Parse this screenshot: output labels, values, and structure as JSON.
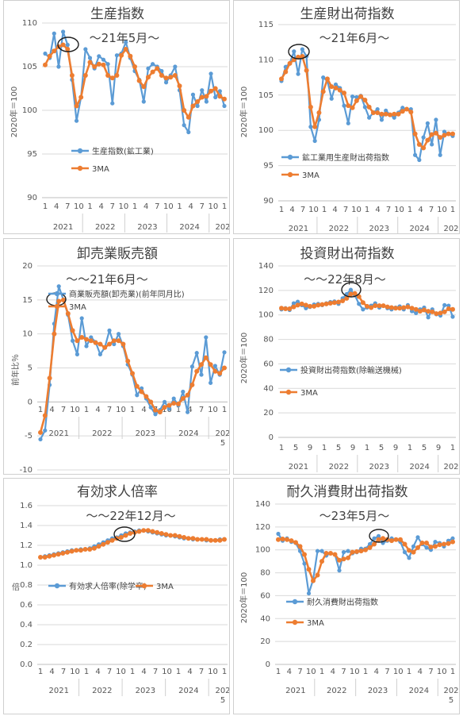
{
  "colors": {
    "series_blue": "#5b9bd5",
    "series_orange": "#ed7d31",
    "marker_circle": "#1f1f1f"
  },
  "chart_data": [
    {
      "id": "p1",
      "type": "line",
      "title": "生産指数",
      "annotation": "〜21年5月〜",
      "ylabel": "2020年＝100",
      "ylim": [
        90,
        110
      ],
      "yticks": [
        "90",
        "95",
        "100",
        "105",
        "110"
      ],
      "xticks": [
        "1",
        "4",
        "7",
        "10",
        "1",
        "4",
        "7",
        "10",
        "1",
        "4",
        "7",
        "10",
        "1",
        "4",
        "7",
        "10",
        "1"
      ],
      "years": [
        "2021",
        "2022",
        "2023",
        "2024",
        "202"
      ],
      "legend": [
        "生産指数(鉱工業)",
        "3MA"
      ],
      "series": [
        {
          "name": "生産指数(鉱工業)",
          "values": [
            106.5,
            106.0,
            108.8,
            105.0,
            109.0,
            107.5,
            103.5,
            98.8,
            101.5,
            107.0,
            106.0,
            104.8,
            106.2,
            105.8,
            105.3,
            100.8,
            106.3,
            106.5,
            107.8,
            106.0,
            104.5,
            103.5,
            101.0,
            104.8,
            105.3,
            105.0,
            104.5,
            103.2,
            104.0,
            105.0,
            102.3,
            98.3,
            97.5,
            101.8,
            100.5,
            102.3,
            101.0,
            104.2,
            101.5,
            102.2,
            100.5
          ]
        },
        {
          "name": "3MA",
          "values": [
            105.2,
            106.2,
            106.8,
            107.3,
            107.5,
            107.0,
            104.0,
            100.5,
            101.5,
            104.0,
            105.5,
            105.0,
            105.3,
            105.2,
            104.0,
            103.7,
            104.0,
            106.3,
            107.0,
            106.2,
            105.0,
            103.4,
            102.7,
            103.8,
            104.4,
            104.8,
            104.0,
            103.7,
            103.8,
            104.0,
            102.8,
            100.0,
            99.2,
            100.5,
            101.0,
            101.5,
            101.6,
            102.2,
            102.5,
            101.6,
            101.3
          ]
        }
      ]
    },
    {
      "id": "p2",
      "type": "line",
      "title": "生産財出荷指数",
      "annotation": "〜21年6月〜",
      "ylabel": "2020年＝100",
      "ylim": [
        90,
        115
      ],
      "yticks": [
        "90",
        "95",
        "100",
        "105",
        "110",
        "115"
      ],
      "xticks": [
        "1",
        "4",
        "7",
        "10",
        "1",
        "4",
        "7",
        "10",
        "1",
        "4",
        "7",
        "10",
        "1",
        "4",
        "7",
        "10",
        "1"
      ],
      "years": [
        "2021",
        "2022",
        "2023",
        "2024",
        "202"
      ],
      "legend": [
        "鉱工業用生産財出荷指数",
        "3MA"
      ],
      "series": [
        {
          "name": "鉱工業用生産財出荷指数",
          "values": [
            107.0,
            109.0,
            109.5,
            111.2,
            108.0,
            111.5,
            110.5,
            100.5,
            98.5,
            101.5,
            107.5,
            107.0,
            104.5,
            106.5,
            106.0,
            103.5,
            101.0,
            104.8,
            104.7,
            104.9,
            103.3,
            101.8,
            102.5,
            103.0,
            101.5,
            102.8,
            102.2,
            101.8,
            102.5,
            103.2,
            103.0,
            103.0,
            96.5,
            95.8,
            99.0,
            101.0,
            98.0,
            101.5,
            96.5,
            99.8,
            99.5,
            99.2
          ]
        },
        {
          "name": "3MA",
          "values": [
            107.3,
            108.3,
            109.5,
            110.0,
            110.4,
            110.5,
            108.5,
            103.3,
            100.5,
            102.5,
            105.5,
            107.3,
            106.2,
            106.0,
            105.7,
            105.3,
            103.5,
            103.2,
            104.2,
            104.8,
            104.3,
            103.3,
            102.5,
            102.5,
            102.3,
            102.3,
            102.2,
            102.3,
            102.3,
            102.7,
            103.0,
            102.6,
            99.5,
            98.0,
            97.5,
            98.6,
            99.4,
            99.6,
            99.0,
            99.3,
            99.5,
            99.5
          ]
        }
      ]
    },
    {
      "id": "p3",
      "type": "line",
      "title": "卸売業販売額",
      "annotation": "〜〜21年6月〜",
      "ylabel": "前年比％",
      "ylim": [
        -10,
        20
      ],
      "yticks": [
        "-10",
        "-5",
        "0",
        "5",
        "10",
        "15",
        "20"
      ],
      "xticks": [
        "1",
        "4",
        "7",
        "10",
        "1",
        "4",
        "7",
        "10",
        "1",
        "4",
        "7",
        "10",
        "1",
        "4",
        "7",
        "10",
        "1"
      ],
      "years": [
        "2021",
        "2022",
        "2023",
        "2024",
        "202"
      ],
      "year_suffix": "5",
      "legend": [
        "商業販売額(卸売業)(前年同月比)",
        "3MA"
      ],
      "series": [
        {
          "name": "商業販売額(卸売業)(前年同月比)",
          "values": [
            -5.5,
            -4.2,
            2.5,
            11.5,
            17.0,
            15.0,
            12.8,
            9.0,
            7.0,
            12.3,
            8.2,
            9.5,
            8.8,
            7.0,
            8.0,
            10.5,
            8.5,
            10.0,
            8.2,
            5.5,
            4.0,
            1.0,
            2.0,
            0.5,
            -0.8,
            -1.8,
            -1.2,
            0.0,
            -1.0,
            0.5,
            -0.5,
            1.5,
            -1.5,
            5.2,
            7.2,
            4.0,
            9.5,
            2.8,
            5.3,
            4.0,
            7.3
          ]
        },
        {
          "name": "3MA",
          "values": [
            -4.5,
            -2.0,
            3.5,
            10.0,
            14.8,
            15.0,
            13.0,
            10.5,
            9.0,
            9.5,
            9.2,
            9.0,
            8.7,
            8.5,
            8.0,
            8.5,
            9.0,
            9.0,
            8.5,
            6.0,
            4.2,
            2.3,
            1.5,
            0.8,
            0.0,
            -1.2,
            -1.5,
            -0.8,
            -0.5,
            -0.2,
            -0.3,
            0.5,
            1.0,
            2.5,
            4.5,
            5.5,
            6.5,
            5.5,
            4.5,
            4.2,
            5.0
          ]
        }
      ]
    },
    {
      "id": "p4",
      "type": "line",
      "title": "投資財出荷指数",
      "annotation": "〜〜22年8月〜",
      "ylabel": "2020年＝100",
      "ylim": [
        0,
        140
      ],
      "yticks": [
        "0",
        "20",
        "40",
        "60",
        "80",
        "100",
        "120",
        "140"
      ],
      "xticks": [
        "1",
        "5",
        "9",
        "1",
        "5",
        "9",
        "1",
        "5",
        "9",
        "1",
        "5",
        "9",
        "1"
      ],
      "years": [
        "2021",
        "2022",
        "2023",
        "2024",
        "202"
      ],
      "legend": [
        "投資財出荷指数(除輸送機械)",
        "3MA"
      ],
      "series": [
        {
          "name": "投資財出荷指数(除輸送機械)",
          "values": [
            104.5,
            105.5,
            104.0,
            109.5,
            110.8,
            108.0,
            105.5,
            106.5,
            108.5,
            109.0,
            108.0,
            109.5,
            110.5,
            111.0,
            109.0,
            113.5,
            117.0,
            120.5,
            116.0,
            109.0,
            104.5,
            106.0,
            107.5,
            109.5,
            106.0,
            107.5,
            105.5,
            104.5,
            106.0,
            107.0,
            104.5,
            108.0,
            103.0,
            101.5,
            104.5,
            106.0,
            98.0,
            104.5,
            100.5,
            99.5,
            108.0,
            107.5,
            98.5
          ]
        },
        {
          "name": "3MA",
          "values": [
            105.5,
            105.0,
            105.0,
            106.5,
            108.0,
            109.0,
            108.0,
            107.0,
            107.0,
            108.0,
            108.5,
            109.0,
            109.5,
            110.0,
            110.5,
            111.5,
            113.5,
            117.0,
            117.5,
            115.0,
            110.0,
            107.0,
            106.0,
            107.5,
            107.5,
            107.5,
            106.5,
            106.0,
            105.5,
            105.5,
            106.0,
            106.5,
            105.5,
            104.5,
            103.0,
            104.0,
            103.0,
            102.5,
            101.0,
            101.5,
            102.5,
            105.0,
            104.5
          ]
        }
      ]
    },
    {
      "id": "p5",
      "type": "line",
      "title": "有効求人倍率",
      "annotation": "〜〜22年12月〜",
      "ylabel": "倍",
      "ylim": [
        0,
        1.6
      ],
      "yticks": [
        "0.0",
        "0.2",
        "0.4",
        "0.6",
        "0.8",
        "1.0",
        "1.2",
        "1.4",
        "1.6"
      ],
      "xticks": [
        "1",
        "4",
        "7",
        "10",
        "1",
        "4",
        "7",
        "10",
        "1",
        "4",
        "7",
        "10",
        "1",
        "4",
        "7",
        "10",
        "1"
      ],
      "years": [
        "2021",
        "2022",
        "2023",
        "2024",
        "202"
      ],
      "year_suffix": "5",
      "legend": [
        "有効求人倍率(除学卒)",
        "3MA"
      ],
      "series": [
        {
          "name": "有効求人倍率(除学卒)",
          "values": [
            1.08,
            1.09,
            1.1,
            1.11,
            1.12,
            1.13,
            1.14,
            1.15,
            1.15,
            1.16,
            1.16,
            1.17,
            1.19,
            1.21,
            1.23,
            1.25,
            1.27,
            1.28,
            1.3,
            1.32,
            1.33,
            1.34,
            1.35,
            1.35,
            1.34,
            1.33,
            1.32,
            1.31,
            1.3,
            1.3,
            1.29,
            1.28,
            1.27,
            1.27,
            1.26,
            1.26,
            1.26,
            1.25,
            1.25,
            1.25,
            1.26,
            1.26
          ]
        },
        {
          "name": "3MA",
          "values": [
            1.08,
            1.08,
            1.09,
            1.1,
            1.11,
            1.12,
            1.13,
            1.14,
            1.15,
            1.15,
            1.16,
            1.16,
            1.17,
            1.19,
            1.21,
            1.23,
            1.25,
            1.27,
            1.28,
            1.3,
            1.32,
            1.33,
            1.34,
            1.35,
            1.35,
            1.34,
            1.33,
            1.32,
            1.31,
            1.3,
            1.3,
            1.29,
            1.28,
            1.27,
            1.27,
            1.26,
            1.26,
            1.26,
            1.25,
            1.25,
            1.25,
            1.26
          ]
        }
      ]
    },
    {
      "id": "p6",
      "type": "line",
      "title": "耐久消費財出荷指数",
      "annotation": "〜23年5月〜",
      "ylabel": "2020年＝100",
      "ylim": [
        0,
        140
      ],
      "yticks": [
        "0",
        "20",
        "40",
        "60",
        "80",
        "100",
        "120",
        "140"
      ],
      "xticks": [
        "1",
        "4",
        "7",
        "10",
        "1",
        "4",
        "7",
        "10",
        "1",
        "4",
        "7",
        "10",
        "1",
        "4",
        "7",
        "10",
        "1"
      ],
      "years": [
        "2021",
        "2022",
        "2023",
        "2024",
        "202"
      ],
      "year_suffix": "5",
      "legend": [
        "耐久消費財出荷指数",
        "3MA"
      ],
      "series": [
        {
          "name": "耐久消費財出荷指数",
          "values": [
            114.0,
            108.0,
            110.0,
            107.0,
            106.0,
            99.0,
            88.0,
            62.0,
            74.0,
            99.0,
            99.0,
            95.0,
            97.0,
            96.0,
            82.0,
            98.0,
            99.0,
            97.0,
            98.0,
            101.0,
            101.0,
            105.0,
            110.0,
            112.0,
            106.0,
            108.0,
            110.0,
            109.0,
            107.0,
            98.0,
            93.0,
            103.0,
            111.0,
            105.0,
            102.0,
            100.0,
            107.0,
            106.0,
            103.0,
            108.0,
            110.0
          ]
        },
        {
          "name": "3MA",
          "values": [
            109.0,
            109.5,
            109.0,
            108.0,
            106.5,
            103.0,
            96.0,
            83.0,
            73.0,
            78.0,
            90.0,
            97.0,
            97.0,
            96.0,
            91.0,
            92.0,
            93.0,
            98.0,
            98.5,
            99.0,
            100.0,
            102.0,
            105.0,
            109.0,
            110.0,
            109.0,
            108.0,
            109.0,
            109.0,
            105.0,
            99.5,
            98.0,
            102.0,
            106.0,
            106.0,
            102.5,
            103.0,
            104.5,
            105.0,
            105.5,
            107.0
          ]
        }
      ]
    }
  ]
}
